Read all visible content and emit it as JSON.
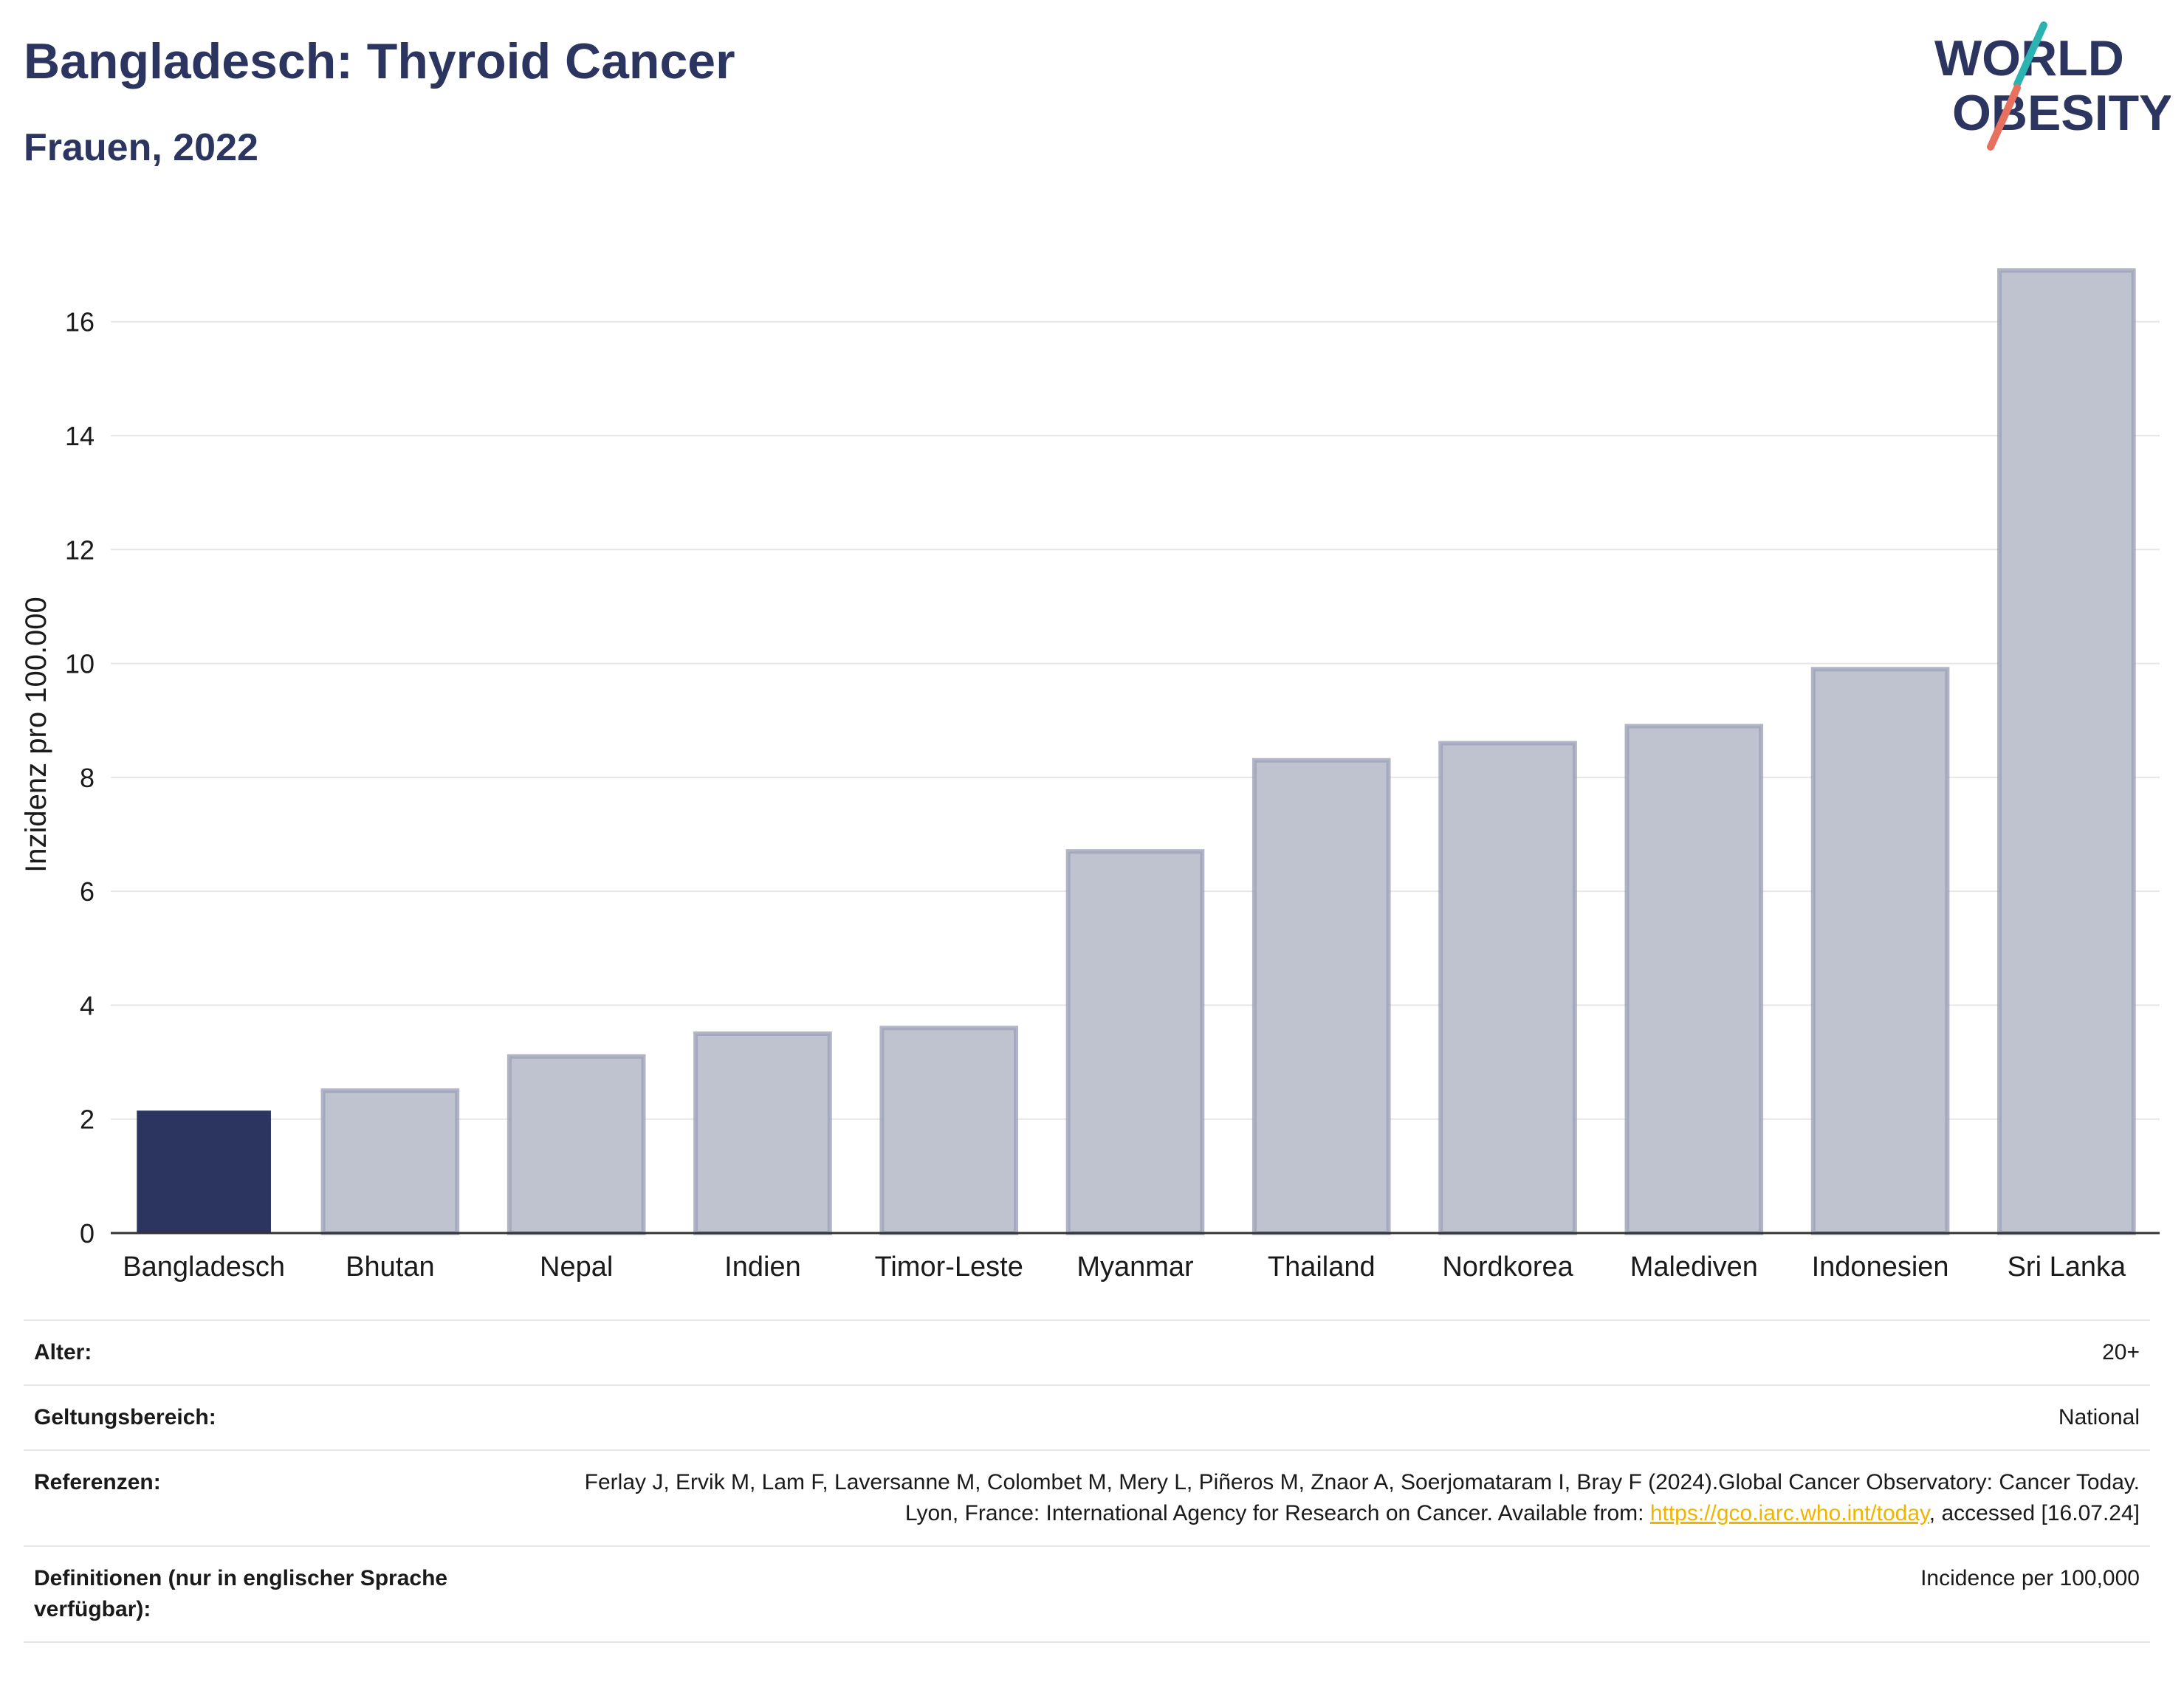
{
  "header": {
    "title": "Bangladesch: Thyroid Cancer",
    "subtitle": "Frauen, 2022",
    "logo_line1": "WORLD",
    "logo_line2": "OBESITY"
  },
  "colors": {
    "highlight_bar": "#2b3560",
    "other_bar_fill": "#bfc3d0",
    "other_bar_stroke": "#9da3b8",
    "title": "#2b3560",
    "link": "#f0b400",
    "logo_teal": "#2bb3b1",
    "logo_coral": "#e8705f"
  },
  "chart_data": {
    "type": "bar",
    "categories": [
      "Bangladesch",
      "Bhutan",
      "Nepal",
      "Indien",
      "Timor-Leste",
      "Myanmar",
      "Thailand",
      "Nordkorea",
      "Malediven",
      "Indonesien",
      "Sri Lanka"
    ],
    "values": [
      2.15,
      2.5,
      3.1,
      3.5,
      3.6,
      6.7,
      8.3,
      8.6,
      8.9,
      9.9,
      16.9
    ],
    "highlight": "Bangladesch",
    "ylabel": "Inzidenz pro 100.000",
    "xlabel": "",
    "ylim": [
      0,
      17.5
    ],
    "yticks": [
      0,
      2,
      4,
      6,
      8,
      10,
      12,
      14,
      16
    ],
    "grid": true
  },
  "info": {
    "age_label": "Alter:",
    "age_value": "20+",
    "scope_label": "Geltungsbereich:",
    "scope_value": "National",
    "ref_label": "Referenzen:",
    "ref_text_1": "Ferlay J, Ervik M, Lam F, Laversanne M, Colombet M, Mery L, Piñeros M, Znaor A, Soerjomataram I, Bray F (2024).Global Cancer Observatory: Cancer Today. Lyon, France: International Agency for Research on Cancer. Available from: ",
    "ref_link": "https://gco.iarc.who.int/today",
    "ref_text_2": ", accessed [16.07.24]",
    "def_label": "Definitionen (nur in englischer Sprache verfügbar):",
    "def_value": "Incidence per 100,000"
  }
}
